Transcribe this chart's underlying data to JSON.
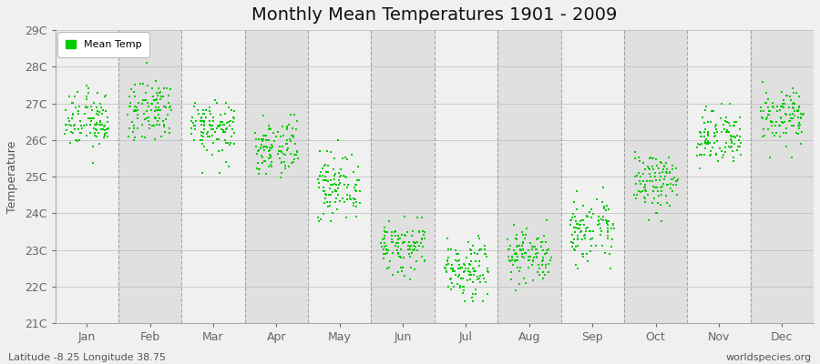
{
  "title": "Monthly Mean Temperatures 1901 - 2009",
  "ylabel": "Temperature",
  "ylim": [
    21,
    29
  ],
  "yticks": [
    21,
    22,
    23,
    24,
    25,
    26,
    27,
    28,
    29
  ],
  "ytick_labels": [
    "21C",
    "22C",
    "23C",
    "24C",
    "25C",
    "26C",
    "27C",
    "28C",
    "29C"
  ],
  "months": [
    "Jan",
    "Feb",
    "Mar",
    "Apr",
    "May",
    "Jun",
    "Jul",
    "Aug",
    "Sep",
    "Oct",
    "Nov",
    "Dec"
  ],
  "monthly_means": [
    26.52,
    26.82,
    26.35,
    25.78,
    24.72,
    23.05,
    22.48,
    22.85,
    23.52,
    24.85,
    26.05,
    26.62
  ],
  "monthly_stds": [
    0.38,
    0.42,
    0.35,
    0.38,
    0.38,
    0.35,
    0.4,
    0.38,
    0.38,
    0.4,
    0.4,
    0.38
  ],
  "n_years": 109,
  "dot_color": "#00CC00",
  "dot_size": 3,
  "plot_bg_light": "#F0F0F0",
  "plot_bg_dark": "#E0E0E0",
  "fig_bg": "#F0F0F0",
  "spine_color": "#AAAAAA",
  "dashed_line_color": "#888888",
  "footer_left": "Latitude -8.25 Longitude 38.75",
  "footer_right": "worldspecies.org",
  "legend_label": "Mean Temp",
  "title_fontsize": 14,
  "axis_fontsize": 9,
  "footer_fontsize": 8
}
